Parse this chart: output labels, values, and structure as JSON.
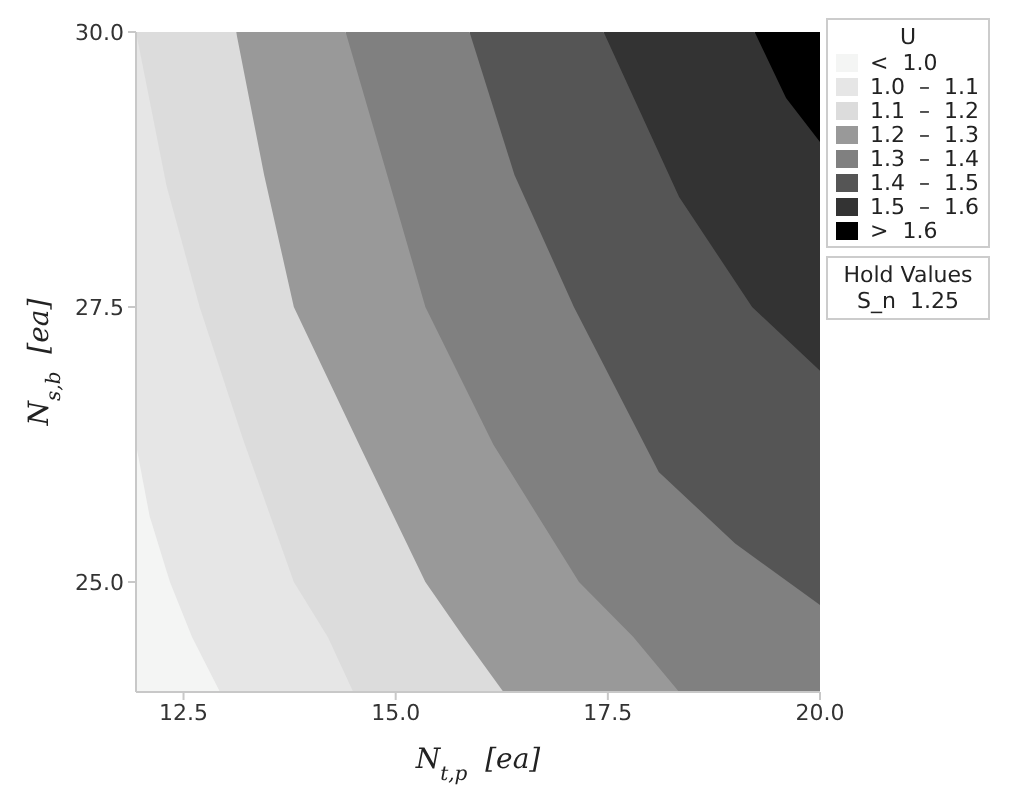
{
  "chart_data": {
    "type": "area",
    "xlabel": "N$_{t,p}$  [ea]",
    "ylabel": "N$_{s,b}$  [ea]",
    "legend_title": "U",
    "legend": "top right",
    "xlim": [
      11.94,
      20
    ],
    "xticks": [
      {
        "value": 12.5,
        "label": "12.5"
      },
      {
        "value": 15,
        "label": "15.0"
      },
      {
        "value": 17.5,
        "label": "17.5"
      },
      {
        "value": 20,
        "label": "20.0"
      }
    ],
    "ylim": [
      24,
      30
    ],
    "yticks": [
      {
        "value": 25,
        "label": "25.0"
      },
      {
        "value": 27.5,
        "label": "27.5"
      },
      {
        "value": 30,
        "label": "30.0"
      }
    ],
    "annotations": [
      "Hold Values",
      "S_n  1.25"
    ],
    "series": [
      {
        "name": "<  1.0",
        "color": "#f4f5f4",
        "x": [
          11.94,
          12.1,
          12.34,
          12.6,
          12.93
        ],
        "values": [
          26.25,
          25.6,
          25.0,
          24.5,
          24.0
        ]
      },
      {
        "name": "1.0  –  1.1",
        "color": "#e6e6e6",
        "x": [
          11.94,
          12.3,
          12.69,
          13.2,
          13.8,
          14.2,
          14.5
        ],
        "values": [
          30,
          28.6,
          27.5,
          26.3,
          25.0,
          24.5,
          24.0
        ]
      },
      {
        "name": "1.1  –  1.2",
        "color": "#dcdcdc",
        "x": [
          11.94,
          13.12,
          13.45,
          13.8,
          14.6,
          15.35,
          15.8,
          16.27
        ],
        "values": [
          30,
          30,
          28.7,
          27.5,
          26.2,
          25.0,
          24.5,
          24.0
        ]
      },
      {
        "name": "1.2  –  1.3",
        "color": "#999999",
        "x": [
          13.12,
          14.41,
          14.9,
          15.35,
          16.15,
          17.16,
          17.8,
          18.34
        ],
        "values": [
          30,
          30,
          28.7,
          27.5,
          26.25,
          25.0,
          24.5,
          24.0
        ]
      },
      {
        "name": "1.3  –  1.4",
        "color": "#808080",
        "x": [
          14.41,
          15.87,
          16.4,
          17.1,
          18.1,
          19.0,
          20
        ],
        "values": [
          30,
          30,
          28.7,
          27.5,
          26.0,
          25.35,
          24.79
        ]
      },
      {
        "name": "1.4  –  1.5",
        "color": "#555555",
        "x": [
          15.87,
          17.45,
          18.34,
          19.2,
          20
        ],
        "values": [
          30,
          30,
          28.5,
          27.5,
          26.92
        ]
      },
      {
        "name": "1.5  –  1.6",
        "color": "#333333",
        "x": [
          17.45,
          19.23,
          19.6,
          20
        ],
        "values": [
          30,
          30,
          29.4,
          29.0
        ]
      },
      {
        "name": ">  1.6",
        "color": "#000000",
        "x": [
          19.23,
          19.6,
          20
        ],
        "values": [
          30,
          30,
          30
        ]
      }
    ]
  }
}
